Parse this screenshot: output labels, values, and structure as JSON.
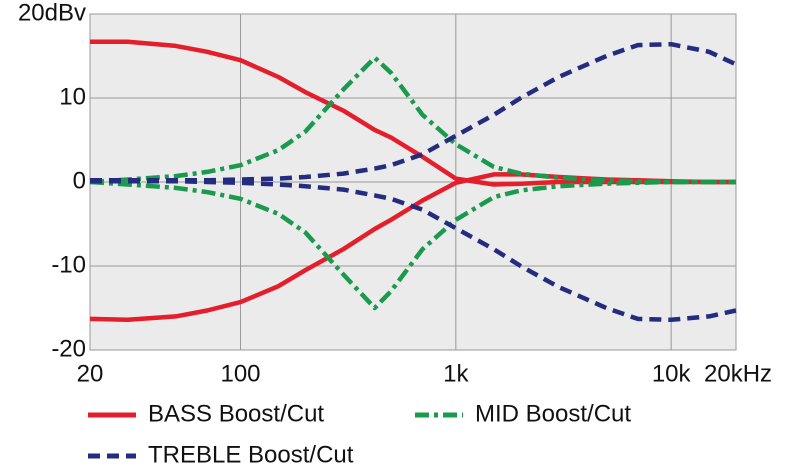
{
  "chart_data": {
    "type": "line",
    "x_scale": "log",
    "x": [
      20,
      30,
      50,
      70,
      100,
      150,
      200,
      300,
      420,
      500,
      700,
      1000,
      1500,
      2000,
      3000,
      5000,
      7000,
      10000,
      15000,
      20000
    ],
    "xlim": [
      20,
      20000
    ],
    "xticks": [
      20,
      100,
      {
        "value": 1000,
        "label": "1k"
      },
      {
        "value": 10000,
        "label": "10k"
      },
      {
        "value": 20000,
        "label": "20kHz"
      }
    ],
    "ylim": [
      -20,
      20
    ],
    "yticks": [
      -20,
      -10,
      0,
      10,
      {
        "value": 20,
        "label": "20dBv"
      }
    ],
    "grid": true,
    "series": [
      {
        "name": "BASS Boost/Cut",
        "color": "#e41e2b",
        "dash": "solid",
        "values": [
          16.7,
          16.7,
          16.2,
          15.5,
          14.5,
          12.5,
          10.7,
          8.5,
          6.2,
          5.3,
          3,
          0.4,
          -0.3,
          -0.2,
          0,
          0,
          0,
          0,
          0,
          0
        ],
        "cut_values": [
          -16.3,
          -16.4,
          -16,
          -15.3,
          -14.3,
          -12.4,
          -10.5,
          -8,
          -5.6,
          -4.5,
          -2.2,
          -0.1,
          0.9,
          0.9,
          0.6,
          0.3,
          0.2,
          0.1,
          0,
          0
        ]
      },
      {
        "name": "MID Boost/Cut",
        "color": "#1a9a4c",
        "dash": "dashdot",
        "values": [
          0,
          0.3,
          0.7,
          1.2,
          2,
          3.8,
          6,
          11,
          14.8,
          13,
          8,
          4.5,
          1.8,
          1,
          0.5,
          0.2,
          0.1,
          0,
          0,
          0
        ],
        "cut_values": [
          0,
          -0.3,
          -0.7,
          -1.2,
          -2,
          -3.8,
          -6,
          -11,
          -15,
          -13,
          -8,
          -4.5,
          -1.8,
          -1,
          -0.5,
          -0.2,
          -0.1,
          0,
          0,
          0
        ]
      },
      {
        "name": "TREBLE Boost/Cut",
        "color": "#232c7e",
        "dash": "dashed",
        "values": [
          0.2,
          0.2,
          0.2,
          0.2,
          0.3,
          0.4,
          0.6,
          1,
          1.6,
          2,
          3.3,
          5.5,
          8,
          10,
          12.5,
          15,
          16.3,
          16.4,
          15.5,
          14
        ],
        "cut_values": [
          0.1,
          0.1,
          0.1,
          0,
          -0.1,
          -0.3,
          -0.5,
          -0.9,
          -1.6,
          -2,
          -3.3,
          -5.5,
          -8,
          -10,
          -12.5,
          -15,
          -16.3,
          -16.4,
          -16,
          -15.3
        ]
      }
    ]
  }
}
